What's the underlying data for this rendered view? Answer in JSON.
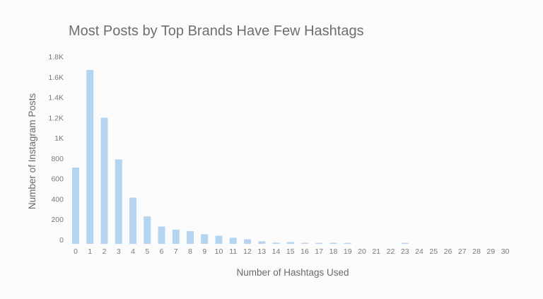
{
  "colors": {
    "background": "#fbfbfc",
    "bar": "#b4d5f1",
    "text": "#6e6e6e"
  },
  "chart_data": {
    "type": "bar",
    "title": "Most Posts by Top Brands Have Few Hashtags",
    "xlabel": "Number of Hashtags Used",
    "ylabel": "Number of Instagram Posts",
    "ylim": [
      0,
      1800
    ],
    "grid": false,
    "categories": [
      "0",
      "1",
      "2",
      "3",
      "4",
      "5",
      "6",
      "7",
      "8",
      "9",
      "10",
      "11",
      "12",
      "13",
      "14",
      "15",
      "16",
      "17",
      "18",
      "19",
      "20",
      "21",
      "22",
      "23",
      "24",
      "25",
      "26",
      "27",
      "28",
      "29",
      "30"
    ],
    "values": [
      750,
      1710,
      1240,
      830,
      455,
      270,
      170,
      140,
      125,
      95,
      80,
      60,
      45,
      25,
      12,
      18,
      10,
      10,
      8,
      6,
      0,
      0,
      0,
      10,
      0,
      0,
      0,
      0,
      0,
      0,
      0
    ],
    "y_ticks": [
      0,
      200,
      400,
      600,
      800,
      1000,
      1200,
      1400,
      1600,
      1800
    ],
    "y_tick_labels": [
      "0",
      "200",
      "400",
      "600",
      "800",
      "1K",
      "1.2K",
      "1.4K",
      "1.6K",
      "1.8K"
    ]
  }
}
